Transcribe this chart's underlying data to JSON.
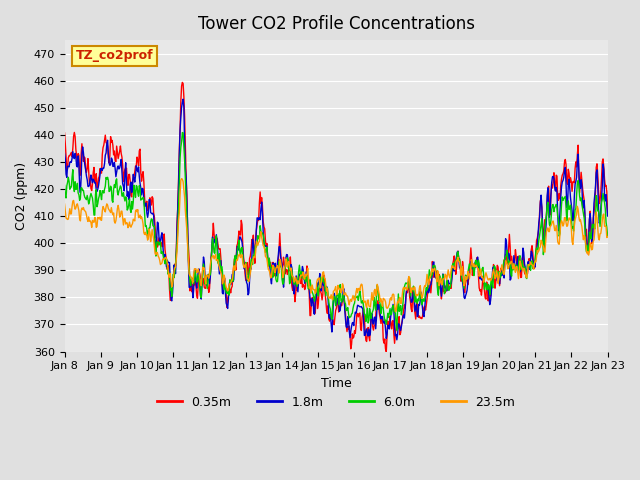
{
  "title": "Tower CO2 Profile Concentrations",
  "xlabel": "Time",
  "ylabel": "CO2 (ppm)",
  "legend_label": "TZ_co2prof",
  "series_labels": [
    "0.35m",
    "1.8m",
    "6.0m",
    "23.5m"
  ],
  "series_colors": [
    "#ff0000",
    "#0000cc",
    "#00cc00",
    "#ff9900"
  ],
  "ylim": [
    360,
    475
  ],
  "xtick_labels": [
    "Jan 8",
    "Jan 9",
    "Jan 10",
    "Jan 11",
    "Jan 12",
    "Jan 13",
    "Jan 14",
    "Jan 15",
    "Jan 16",
    "Jan 17",
    "Jan 18",
    "Jan 19",
    "Jan 20",
    "Jan 21",
    "Jan 22",
    "Jan 23"
  ],
  "n_days": 15,
  "bg_color": "#e0e0e0",
  "plot_bg": "#e8e8e8",
  "linewidth": 1.0
}
